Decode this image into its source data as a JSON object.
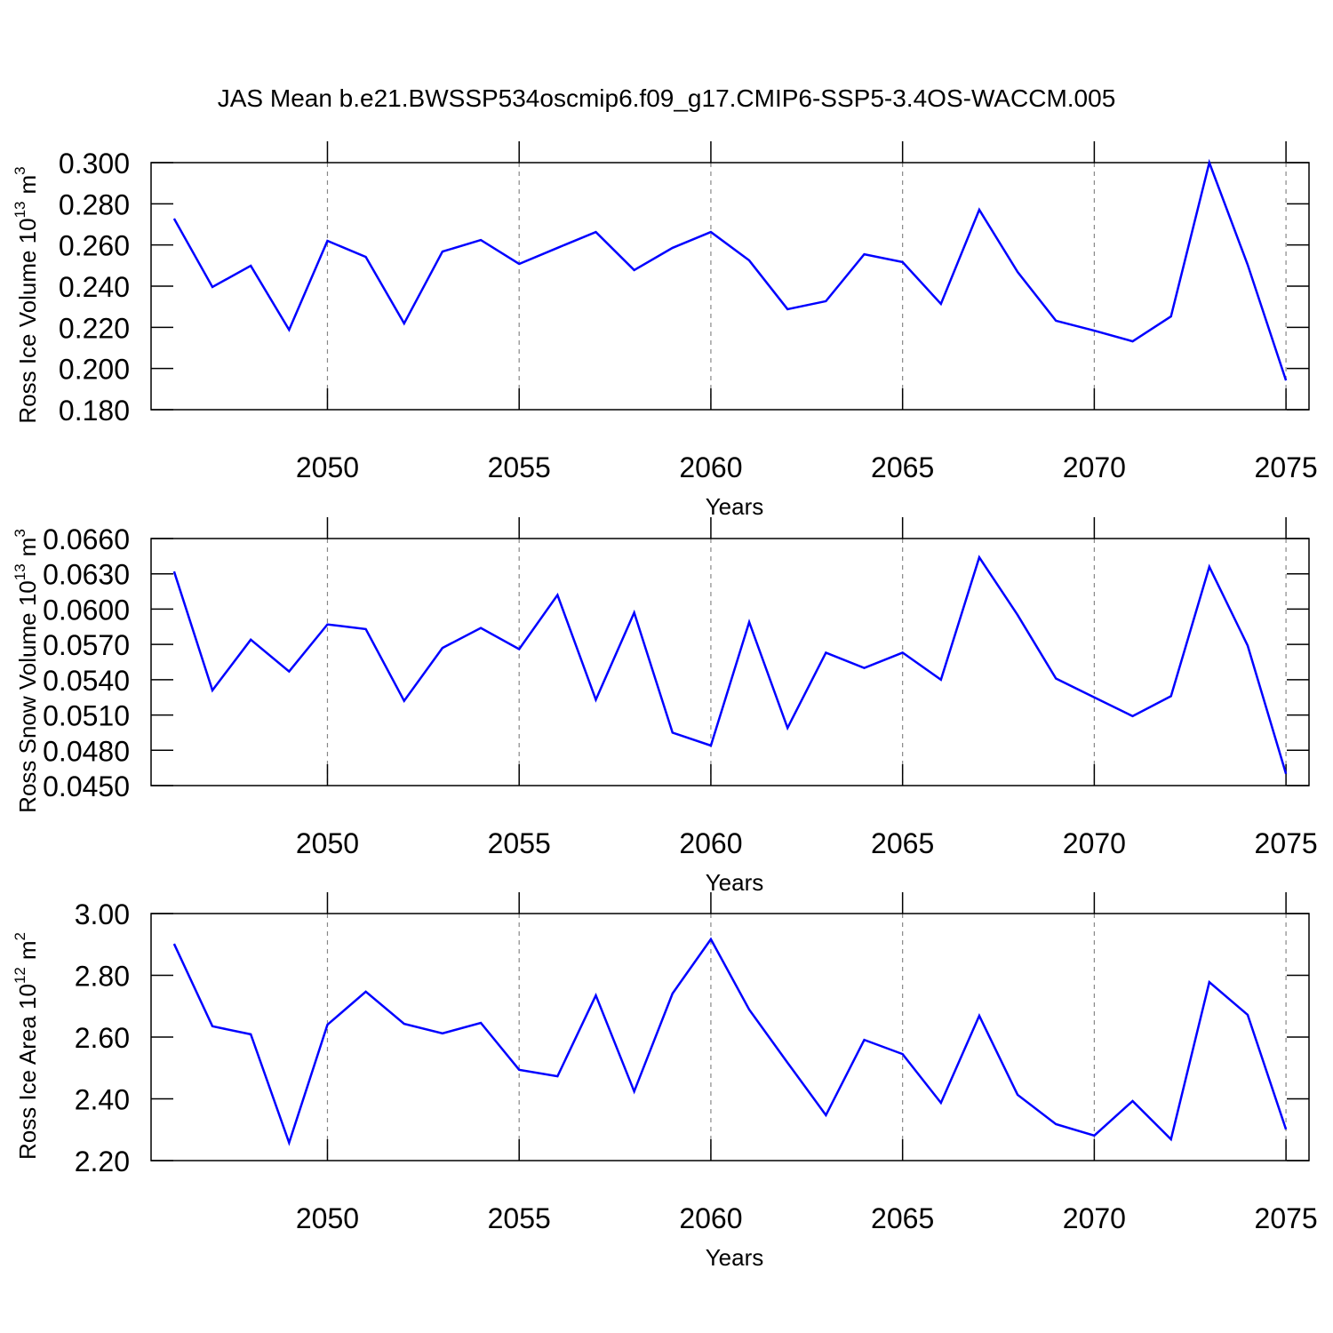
{
  "title": "JAS Mean b.e21.BWSSP534oscmip6.f09_g17.CMIP6-SSP5-3.4OS-WACCM.005",
  "chart_data": [
    {
      "type": "line",
      "xlabel": "Years",
      "ylabel": [
        "Ross Ice Volume 10",
        "13",
        "m",
        "3"
      ],
      "x": [
        2046,
        2047,
        2048,
        2049,
        2050,
        2051,
        2052,
        2053,
        2054,
        2055,
        2056,
        2057,
        2058,
        2059,
        2060,
        2061,
        2062,
        2063,
        2064,
        2065,
        2066,
        2067,
        2068,
        2069,
        2070,
        2071,
        2072,
        2073,
        2074,
        2075
      ],
      "series": [
        {
          "color": "#0000ff",
          "values": [
            0.2728,
            0.2396,
            0.2499,
            0.2188,
            0.262,
            0.2542,
            0.2219,
            0.2568,
            0.2624,
            0.2508,
            0.2586,
            0.2663,
            0.2478,
            0.2586,
            0.2663,
            0.2525,
            0.2288,
            0.2327,
            0.2555,
            0.2517,
            0.2314,
            0.2771,
            0.2469,
            0.2232,
            0.2184,
            0.2132,
            0.2253,
            0.3,
            0.2504,
            0.1942
          ]
        }
      ],
      "xlim": [
        2045.4,
        2075.6
      ],
      "xticks": [
        2050,
        2055,
        2060,
        2065,
        2070,
        2075
      ],
      "ylim": [
        0.18,
        0.3
      ],
      "yticks": [
        {
          "value": 0.18,
          "label": "0.180"
        },
        {
          "value": 0.2,
          "label": "0.200"
        },
        {
          "value": 0.22,
          "label": "0.220"
        },
        {
          "value": 0.24,
          "label": "0.240"
        },
        {
          "value": 0.26,
          "label": "0.260"
        },
        {
          "value": 0.28,
          "label": "0.280"
        },
        {
          "value": 0.3,
          "label": "0.300"
        }
      ],
      "grid": true
    },
    {
      "type": "line",
      "xlabel": "Years",
      "ylabel": [
        "Ross Snow Volume 10",
        "13",
        "m",
        "3"
      ],
      "x": [
        2046,
        2047,
        2048,
        2049,
        2050,
        2051,
        2052,
        2053,
        2054,
        2055,
        2056,
        2057,
        2058,
        2059,
        2060,
        2061,
        2062,
        2063,
        2064,
        2065,
        2066,
        2067,
        2068,
        2069,
        2070,
        2071,
        2072,
        2073,
        2074,
        2075
      ],
      "series": [
        {
          "color": "#0000ff",
          "values": [
            0.0632,
            0.0531,
            0.0574,
            0.0547,
            0.0587,
            0.0583,
            0.0522,
            0.0567,
            0.0584,
            0.0566,
            0.0612,
            0.0523,
            0.0597,
            0.0495,
            0.0484,
            0.0589,
            0.0499,
            0.0563,
            0.055,
            0.0563,
            0.054,
            0.0644,
            0.0595,
            0.0541,
            0.0525,
            0.0509,
            0.0526,
            0.0636,
            0.0569,
            0.046
          ]
        }
      ],
      "xlim": [
        2045.4,
        2075.6
      ],
      "xticks": [
        2050,
        2055,
        2060,
        2065,
        2070,
        2075
      ],
      "ylim": [
        0.045,
        0.066
      ],
      "yticks": [
        {
          "value": 0.045,
          "label": "0.0450"
        },
        {
          "value": 0.048,
          "label": "0.0480"
        },
        {
          "value": 0.051,
          "label": "0.0510"
        },
        {
          "value": 0.054,
          "label": "0.0540"
        },
        {
          "value": 0.057,
          "label": "0.0570"
        },
        {
          "value": 0.06,
          "label": "0.0600"
        },
        {
          "value": 0.063,
          "label": "0.0630"
        },
        {
          "value": 0.066,
          "label": "0.0660"
        }
      ],
      "grid": true
    },
    {
      "type": "line",
      "xlabel": "Years",
      "ylabel": [
        "Ross Ice Area 10",
        "12",
        "m",
        "2"
      ],
      "x": [
        2046,
        2047,
        2048,
        2049,
        2050,
        2051,
        2052,
        2053,
        2054,
        2055,
        2056,
        2057,
        2058,
        2059,
        2060,
        2061,
        2062,
        2063,
        2064,
        2065,
        2066,
        2067,
        2068,
        2069,
        2070,
        2071,
        2072,
        2073,
        2074,
        2075
      ],
      "series": [
        {
          "color": "#0000ff",
          "values": [
            2.902,
            2.635,
            2.609,
            2.258,
            2.64,
            2.747,
            2.643,
            2.612,
            2.646,
            2.494,
            2.473,
            2.735,
            2.424,
            2.741,
            2.917,
            2.689,
            2.517,
            2.347,
            2.591,
            2.545,
            2.387,
            2.669,
            2.413,
            2.318,
            2.281,
            2.393,
            2.269,
            2.778,
            2.672,
            2.301
          ]
        }
      ],
      "xlim": [
        2045.4,
        2075.6
      ],
      "xticks": [
        2050,
        2055,
        2060,
        2065,
        2070,
        2075
      ],
      "ylim": [
        2.2,
        3.0
      ],
      "yticks": [
        {
          "value": 2.2,
          "label": "2.20"
        },
        {
          "value": 2.4,
          "label": "2.40"
        },
        {
          "value": 2.6,
          "label": "2.60"
        },
        {
          "value": 2.8,
          "label": "2.80"
        },
        {
          "value": 3.0,
          "label": "3.00"
        }
      ],
      "grid": true
    }
  ]
}
